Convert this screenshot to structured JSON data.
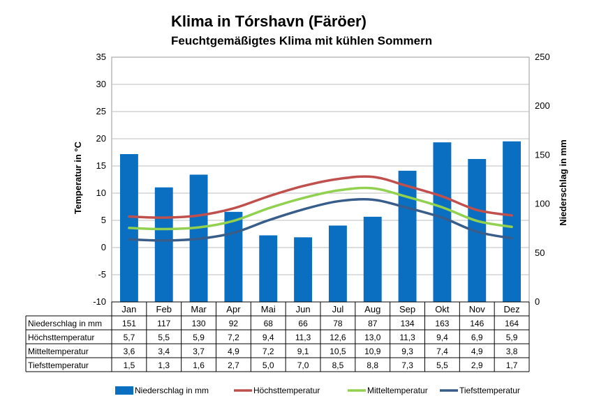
{
  "chart_data": {
    "type": "bar+line",
    "title": "Klima in Tórshavn (Färöer)",
    "subtitle": "Feuchtgemäßigtes Klima mit kühlen Sommern",
    "categories": [
      "Jan",
      "Feb",
      "Mar",
      "Apr",
      "Mai",
      "Jun",
      "Jul",
      "Aug",
      "Sep",
      "Okt",
      "Nov",
      "Dez"
    ],
    "ylabel_left": "Temperatur in °C",
    "ylabel_right": "Niederschlag in mm",
    "ylim_left": [
      -10,
      35
    ],
    "yticks_left": [
      "35",
      "30",
      "25",
      "20",
      "15",
      "10",
      "5",
      "0",
      "-5",
      "-10"
    ],
    "ylim_right": [
      0,
      250
    ],
    "yticks_right": [
      "250",
      "200",
      "150",
      "100",
      "50",
      "0"
    ],
    "series": [
      {
        "name": "Niederschlag in mm",
        "type": "bar",
        "axis": "right",
        "color": "#0b6fc1",
        "values": [
          151,
          117,
          130,
          92,
          68,
          66,
          78,
          87,
          134,
          163,
          146,
          164
        ],
        "labels": [
          "151",
          "117",
          "130",
          "92",
          "68",
          "66",
          "78",
          "87",
          "134",
          "163",
          "146",
          "164"
        ]
      },
      {
        "name": "Höchsttemperatur",
        "type": "line",
        "axis": "left",
        "color": "#c0504d",
        "values": [
          5.7,
          5.5,
          5.9,
          7.2,
          9.4,
          11.3,
          12.6,
          13.0,
          11.3,
          9.4,
          6.9,
          5.9
        ],
        "labels": [
          "5,7",
          "5,5",
          "5,9",
          "7,2",
          "9,4",
          "11,3",
          "12,6",
          "13,0",
          "11,3",
          "9,4",
          "6,9",
          "5,9"
        ]
      },
      {
        "name": "Mitteltemperatur",
        "type": "line",
        "axis": "left",
        "color": "#92d050",
        "values": [
          3.6,
          3.4,
          3.7,
          4.9,
          7.2,
          9.1,
          10.5,
          10.9,
          9.3,
          7.4,
          4.9,
          3.8
        ],
        "labels": [
          "3,6",
          "3,4",
          "3,7",
          "4,9",
          "7,2",
          "9,1",
          "10,5",
          "10,9",
          "9,3",
          "7,4",
          "4,9",
          "3,8"
        ]
      },
      {
        "name": "Tiefsttemperatur",
        "type": "line",
        "axis": "left",
        "color": "#385d8a",
        "values": [
          1.5,
          1.3,
          1.6,
          2.7,
          5.0,
          7.0,
          8.5,
          8.8,
          7.3,
          5.5,
          2.9,
          1.7
        ],
        "labels": [
          "1,5",
          "1,3",
          "1,6",
          "2,7",
          "5,0",
          "7,0",
          "8,5",
          "8,8",
          "7,3",
          "5,5",
          "2,9",
          "1,7"
        ]
      }
    ],
    "grid": true,
    "legend": "bottom"
  }
}
